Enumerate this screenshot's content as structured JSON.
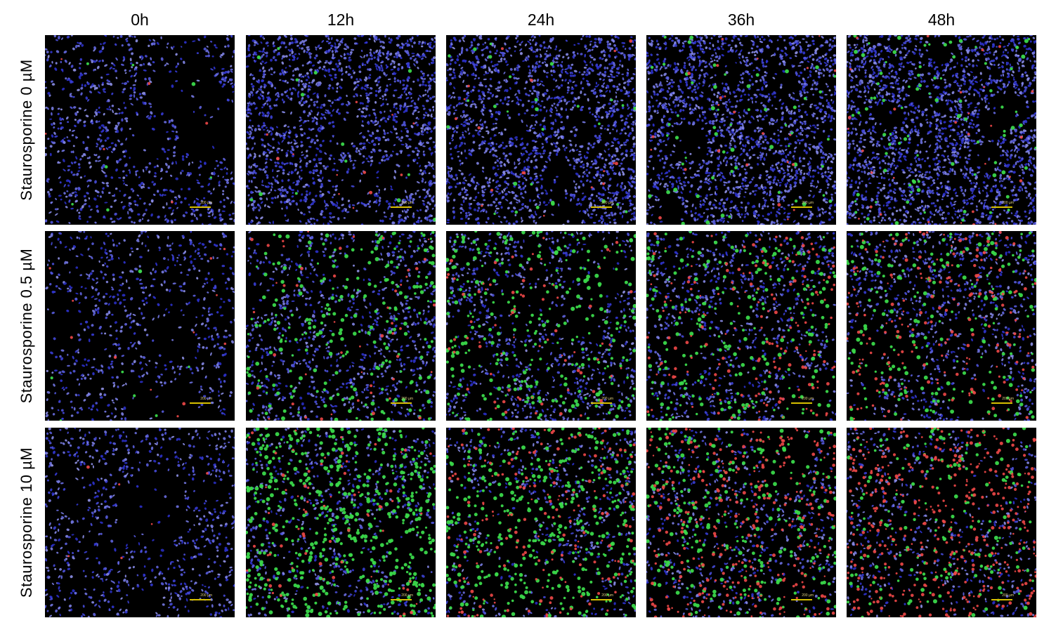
{
  "figure": {
    "columns": [
      {
        "label": "0h"
      },
      {
        "label": "12h"
      },
      {
        "label": "24h"
      },
      {
        "label": "36h"
      },
      {
        "label": "48h"
      }
    ],
    "rows": [
      {
        "label": "Staurosporine  0 µM",
        "cells": [
          {
            "density": 0.55,
            "green": 0.01,
            "red": 0.01
          },
          {
            "density": 0.85,
            "green": 0.02,
            "red": 0.02
          },
          {
            "density": 0.9,
            "green": 0.04,
            "red": 0.03
          },
          {
            "density": 0.95,
            "green": 0.08,
            "red": 0.04
          },
          {
            "density": 1.0,
            "green": 0.12,
            "red": 0.05
          }
        ]
      },
      {
        "label": "Staurosporine  0.5 µM",
        "cells": [
          {
            "density": 0.45,
            "green": 0.01,
            "red": 0.02
          },
          {
            "density": 0.55,
            "green": 0.35,
            "red": 0.08
          },
          {
            "density": 0.55,
            "green": 0.4,
            "red": 0.12
          },
          {
            "density": 0.55,
            "green": 0.35,
            "red": 0.3
          },
          {
            "density": 0.55,
            "green": 0.3,
            "red": 0.35
          }
        ]
      },
      {
        "label": "Staurosporine  10 µM",
        "cells": [
          {
            "density": 0.5,
            "green": 0.0,
            "red": 0.01
          },
          {
            "density": 0.45,
            "green": 0.8,
            "red": 0.12
          },
          {
            "density": 0.42,
            "green": 0.6,
            "red": 0.3
          },
          {
            "density": 0.42,
            "green": 0.4,
            "red": 0.55
          },
          {
            "density": 0.4,
            "green": 0.25,
            "red": 0.7
          }
        ]
      }
    ],
    "scale_bar_text": "200 µm",
    "colors": {
      "nuclei": "#5a5fe0",
      "apoptotic": "#3ad84a",
      "dead": "#f04848",
      "scale_bar": "#d8c000"
    }
  }
}
